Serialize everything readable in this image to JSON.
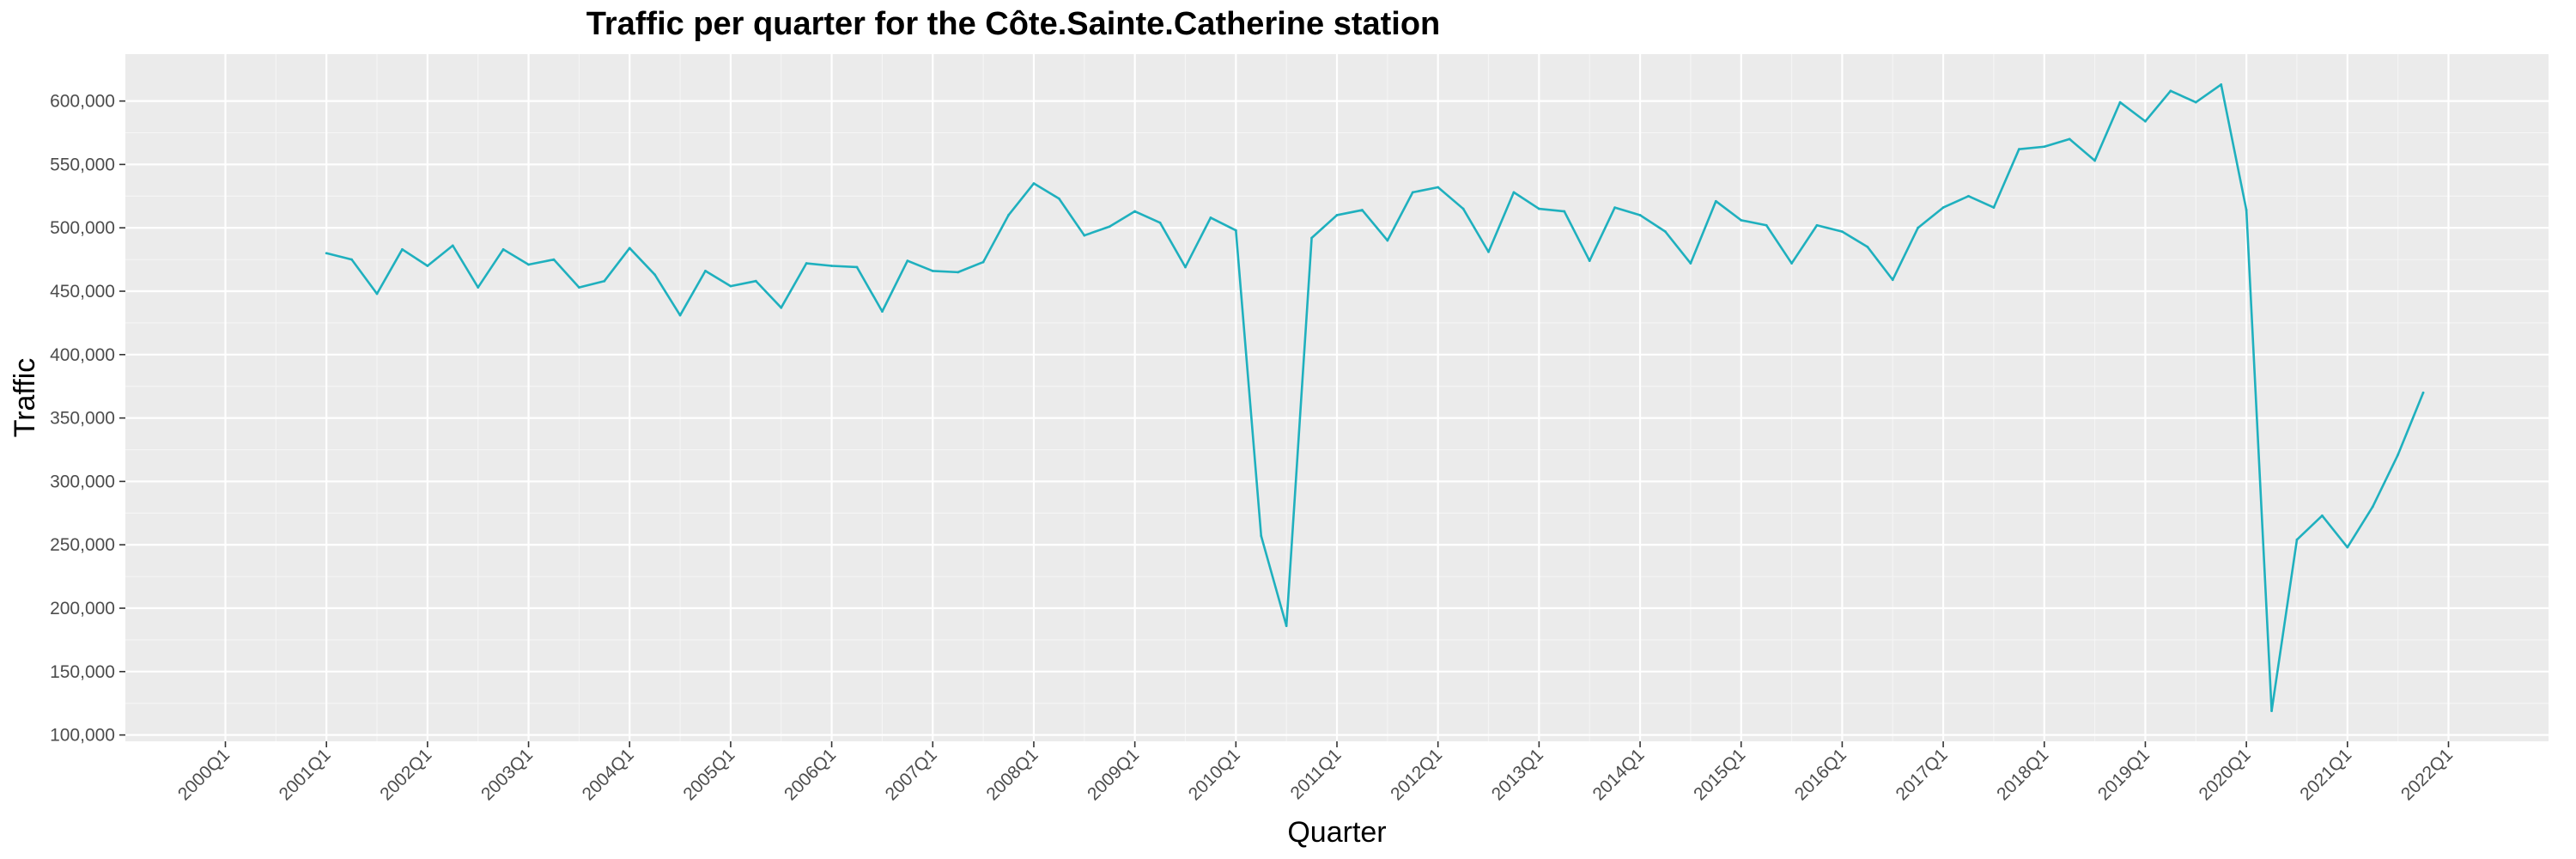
{
  "chart_data": {
    "type": "line",
    "title": "Traffic per quarter for the Côte.Sainte.Catherine station",
    "xlabel": "Quarter",
    "ylabel": "Traffic",
    "ylim": [
      95000,
      637000
    ],
    "grid": true,
    "colors": {
      "line": "#1fb0be",
      "panel": "#ebebeb",
      "grid_major": "#ffffff",
      "grid_minor": "#f5f5f5",
      "tick_text": "#4d4d4d",
      "tick_mark": "#333333"
    },
    "x_ticks": [
      "2000Q1",
      "2001Q1",
      "2002Q1",
      "2003Q1",
      "2004Q1",
      "2005Q1",
      "2006Q1",
      "2007Q1",
      "2008Q1",
      "2009Q1",
      "2010Q1",
      "2011Q1",
      "2012Q1",
      "2013Q1",
      "2014Q1",
      "2015Q1",
      "2016Q1",
      "2017Q1",
      "2018Q1",
      "2019Q1",
      "2020Q1",
      "2021Q1",
      "2022Q1"
    ],
    "y_ticks": [
      {
        "value": 100000,
        "label": "100,000"
      },
      {
        "value": 150000,
        "label": "150,000"
      },
      {
        "value": 200000,
        "label": "200,000"
      },
      {
        "value": 250000,
        "label": "250,000"
      },
      {
        "value": 300000,
        "label": "300,000"
      },
      {
        "value": 350000,
        "label": "350,000"
      },
      {
        "value": 400000,
        "label": "400,000"
      },
      {
        "value": 450000,
        "label": "450,000"
      },
      {
        "value": 500000,
        "label": "500,000"
      },
      {
        "value": 550000,
        "label": "550,000"
      },
      {
        "value": 600000,
        "label": "600,000"
      }
    ],
    "series": [
      {
        "x": [
          "2001Q1",
          "2001Q2",
          "2001Q3",
          "2001Q4",
          "2002Q1",
          "2002Q2",
          "2002Q3",
          "2002Q4",
          "2003Q1",
          "2003Q2",
          "2003Q3",
          "2003Q4",
          "2004Q1",
          "2004Q2",
          "2004Q3",
          "2004Q4",
          "2005Q1",
          "2005Q2",
          "2005Q3",
          "2005Q4",
          "2006Q1",
          "2006Q2",
          "2006Q3",
          "2006Q4",
          "2007Q1",
          "2007Q2",
          "2007Q3",
          "2007Q4",
          "2008Q1",
          "2008Q2",
          "2008Q3",
          "2008Q4",
          "2009Q1",
          "2009Q2",
          "2009Q3",
          "2009Q4",
          "2010Q1",
          "2010Q2",
          "2010Q3",
          "2010Q4",
          "2011Q1",
          "2011Q2",
          "2011Q3",
          "2011Q4",
          "2012Q1",
          "2012Q2",
          "2012Q3",
          "2012Q4",
          "2013Q1",
          "2013Q2",
          "2013Q3",
          "2013Q4",
          "2014Q1",
          "2014Q2",
          "2014Q3",
          "2014Q4",
          "2015Q1",
          "2015Q2",
          "2015Q3",
          "2015Q4",
          "2016Q1",
          "2016Q2",
          "2016Q3",
          "2016Q4",
          "2017Q1",
          "2017Q2",
          "2017Q3",
          "2017Q4",
          "2018Q1",
          "2018Q2",
          "2018Q3",
          "2018Q4",
          "2019Q1",
          "2019Q2",
          "2019Q3",
          "2019Q4",
          "2020Q1",
          "2020Q2",
          "2020Q3",
          "2020Q4",
          "2021Q1",
          "2021Q2",
          "2021Q3",
          "2021Q4"
        ],
        "values": [
          480000,
          475000,
          448000,
          483000,
          470000,
          486000,
          453000,
          483000,
          471000,
          475000,
          453000,
          458000,
          484000,
          463000,
          431000,
          466000,
          454000,
          458000,
          437000,
          472000,
          470000,
          469000,
          434000,
          474000,
          466000,
          465000,
          473000,
          510000,
          535000,
          523000,
          494000,
          501000,
          513000,
          504000,
          469000,
          508000,
          498000,
          257000,
          186000,
          492000,
          510000,
          514000,
          490000,
          528000,
          532000,
          515000,
          481000,
          528000,
          515000,
          513000,
          474000,
          516000,
          510000,
          497000,
          472000,
          521000,
          506000,
          502000,
          472000,
          502000,
          497000,
          485000,
          459000,
          500000,
          516000,
          525000,
          516000,
          562000,
          564000,
          570000,
          553000,
          599000,
          584000,
          608000,
          599000,
          613000,
          514000,
          119000,
          254000,
          273000,
          248000,
          280000,
          321000,
          370000
        ]
      }
    ]
  }
}
